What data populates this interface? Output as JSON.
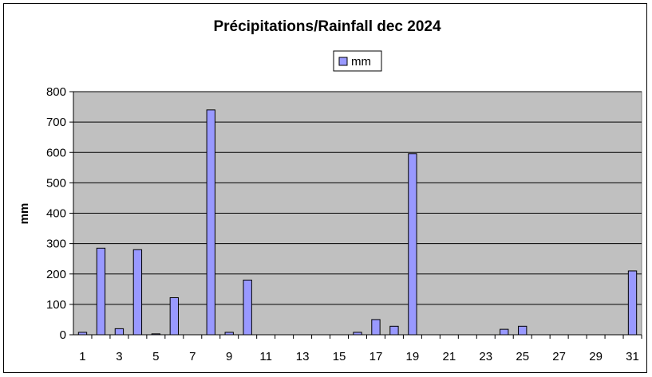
{
  "chart_data": {
    "type": "bar",
    "title": "Précipitations/Rainfall dec 2024",
    "xlabel": "",
    "ylabel": "mm",
    "ylim": [
      0,
      800
    ],
    "yticks": [
      0,
      100,
      200,
      300,
      400,
      500,
      600,
      700,
      800
    ],
    "categories": [
      "1",
      "2",
      "3",
      "4",
      "5",
      "6",
      "7",
      "8",
      "9",
      "10",
      "11",
      "12",
      "13",
      "14",
      "15",
      "16",
      "17",
      "18",
      "19",
      "20",
      "21",
      "22",
      "23",
      "24",
      "25",
      "26",
      "27",
      "28",
      "29",
      "30",
      "31"
    ],
    "x_tick_labels": [
      "1",
      "3",
      "5",
      "7",
      "9",
      "11",
      "13",
      "15",
      "17",
      "19",
      "21",
      "23",
      "25",
      "27",
      "29",
      "31"
    ],
    "series": [
      {
        "name": "mm",
        "color": "#9999ff",
        "values": [
          8,
          285,
          20,
          280,
          3,
          122,
          0,
          740,
          8,
          180,
          0,
          0,
          0,
          0,
          0,
          8,
          50,
          28,
          596,
          0,
          0,
          0,
          0,
          18,
          28,
          0,
          0,
          0,
          0,
          0,
          210
        ]
      }
    ],
    "legend": {
      "position": "top-center"
    },
    "grid": true,
    "plot_background": "#c0c0c0"
  }
}
